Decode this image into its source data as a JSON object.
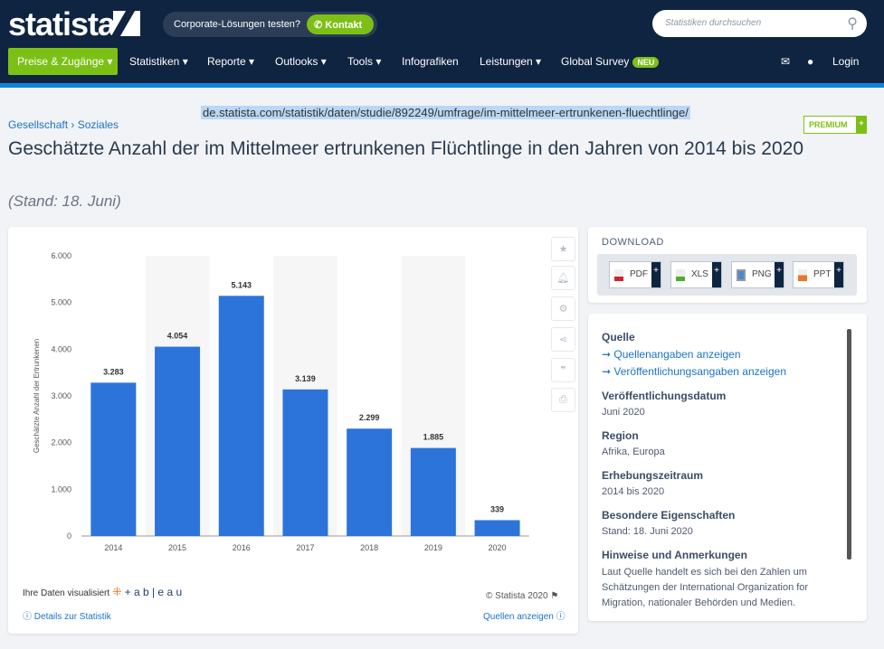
{
  "header": {
    "logo": "statista",
    "corporate_text": "Corporate-Lösungen testen?",
    "kontakt": "Kontakt",
    "search_placeholder": "Statistiken durchsuchen"
  },
  "nav": {
    "items": [
      "Preise & Zugänge",
      "Statistiken",
      "Reporte",
      "Outlooks",
      "Tools",
      "Infografiken",
      "Leistungen",
      "Global Survey"
    ],
    "neu": "NEU",
    "login": "Login"
  },
  "url": "de.statista.com/statistik/daten/studie/892249/umfrage/im-mittelmeer-ertrunkenen-fluechtlinge/",
  "breadcrumb": [
    "Gesellschaft",
    "Soziales"
  ],
  "premium": "PREMIUM",
  "title": "Geschätzte Anzahl der im Mittelmeer ertrunkenen Flüchtlinge in den Jahren von 2014 bis 2020",
  "stand": "(Stand: 18. Juni)",
  "chart_data": {
    "type": "bar",
    "categories": [
      "2014",
      "2015",
      "2016",
      "2017",
      "2018",
      "2019",
      "2020"
    ],
    "values": [
      3283,
      4054,
      5143,
      3139,
      2299,
      1885,
      339
    ],
    "value_labels": [
      "3.283",
      "4.054",
      "5.143",
      "3.139",
      "2.299",
      "1.885",
      "339"
    ],
    "ylabel": "Geschätzte Anzahl der Ertrunkenen",
    "ylim": [
      0,
      6000
    ],
    "yticks": [
      "0",
      "1.000",
      "2.000",
      "3.000",
      "4.000",
      "5.000",
      "6.000"
    ],
    "color": "#2d74da",
    "grid": false
  },
  "chart_footer": {
    "tableau_text": "Ihre Daten visualisiert",
    "tableau": "+ a b | e a u",
    "copyright": "© Statista 2020",
    "details": "Details zur Statistik",
    "sources": "Quellen anzeigen"
  },
  "download": {
    "title": "DOWNLOAD",
    "buttons": [
      "PDF",
      "XLS",
      "PNG",
      "PPT"
    ]
  },
  "info": {
    "quelle": "Quelle",
    "quellen_link": "➞ Quellenangaben anzeigen",
    "veroeff_link": "➞ Veröffentlichungsangaben anzeigen",
    "datum_h": "Veröffentlichungsdatum",
    "datum": "Juni 2020",
    "region_h": "Region",
    "region": "Afrika, Europa",
    "zeitraum_h": "Erhebungszeitraum",
    "zeitraum": "2014 bis 2020",
    "eigen_h": "Besondere Eigenschaften",
    "eigen": "Stand: 18. Juni 2020",
    "hinweise_h": "Hinweise und Anmerkungen",
    "hinweise": "Laut Quelle handelt es sich bei den Zahlen um Schätzungen der International Organization for Migration, nationaler Behörden und Medien."
  }
}
